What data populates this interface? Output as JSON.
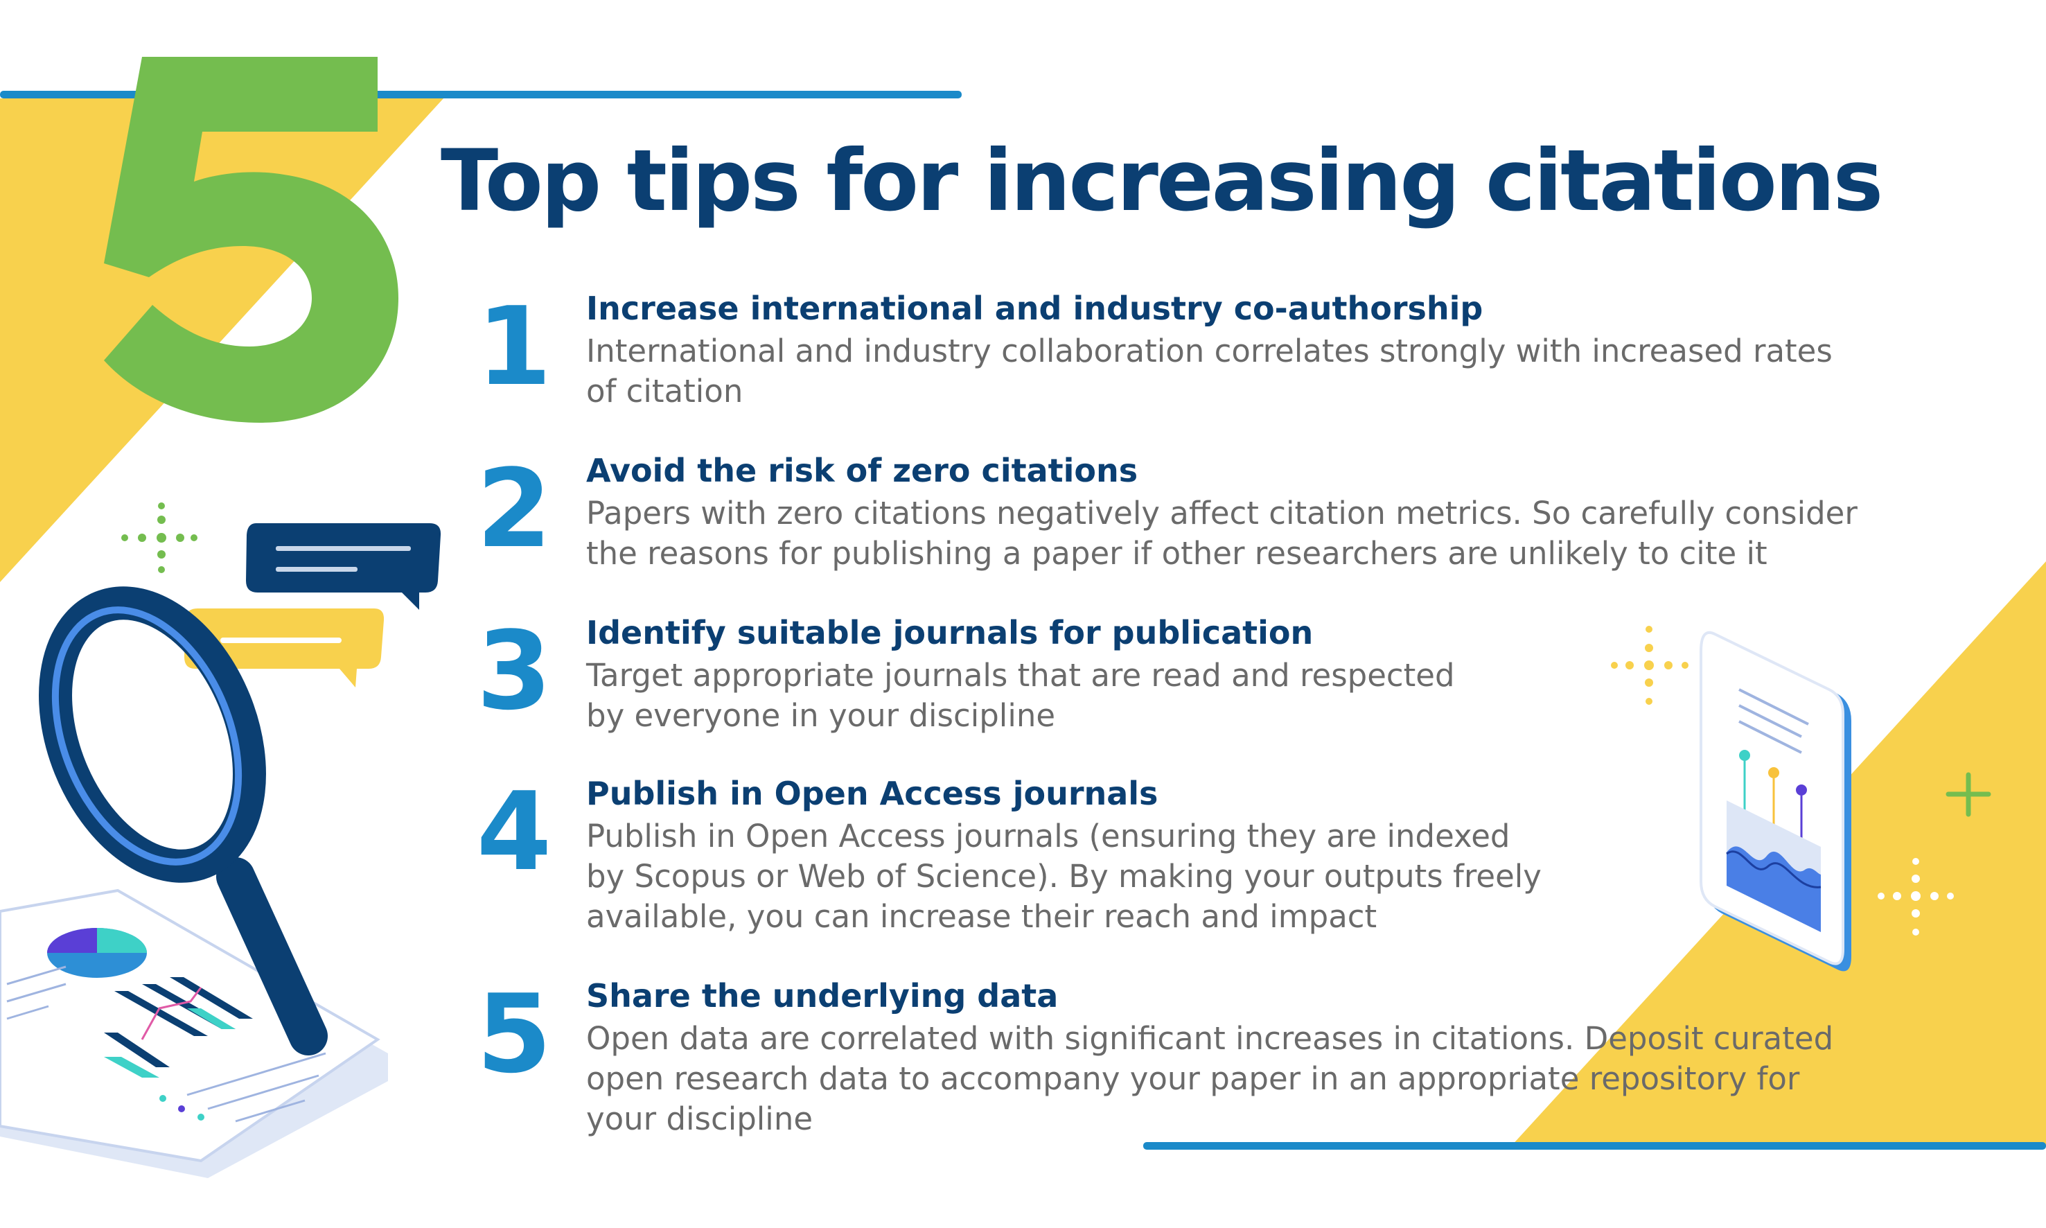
{
  "title": "Top tips for increasing citations",
  "big_number": "5",
  "colors": {
    "navy": "#0b3f72",
    "blue": "#1b8ac9",
    "green": "#74bd4f",
    "yellow": "#f8d14d",
    "gray_text": "#6a6a6a"
  },
  "tips": [
    {
      "number": "1",
      "heading": "Increase international and industry co-authorship",
      "body": "International and industry collaboration correlates strongly with increased rates\nof citation"
    },
    {
      "number": "2",
      "heading": "Avoid the risk of zero citations",
      "body": "Papers with zero citations negatively affect citation metrics. So carefully consider\nthe reasons for publishing a paper if other researchers are unlikely to cite it"
    },
    {
      "number": "3",
      "heading": "Identify suitable journals for publication",
      "body": "Target appropriate journals that are read and respected\nby everyone in your discipline"
    },
    {
      "number": "4",
      "heading": "Publish in Open Access journals",
      "body": "Publish in Open Access journals (ensuring they are indexed\nby Scopus or Web of Science). By making your outputs freely\navailable, you can increase their reach and impact"
    },
    {
      "number": "5",
      "heading": "Share the underlying data",
      "body": "Open data are correlated with significant increases in citations. Deposit curated\nopen research data to accompany your paper in an appropriate repository for\nyour discipline"
    }
  ],
  "icons": [
    "magnifying-glass-icon",
    "chat-bubble-icon",
    "phone-chart-icon",
    "document-chart-icon",
    "sparkle-icon",
    "plus-icon"
  ]
}
